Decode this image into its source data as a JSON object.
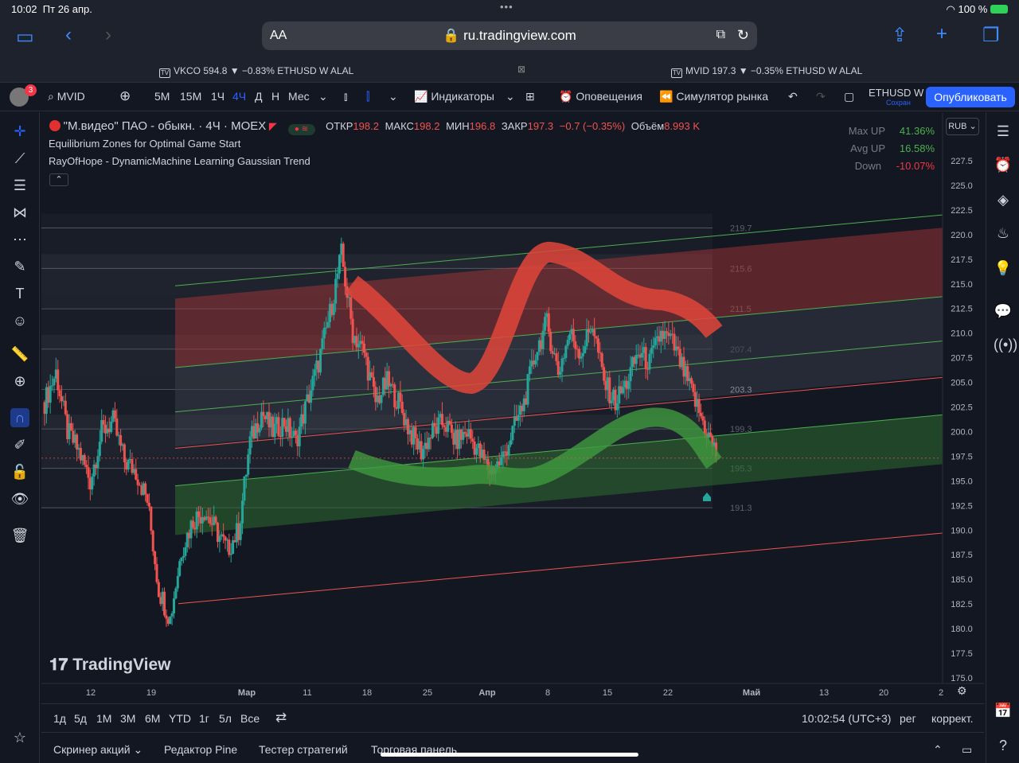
{
  "status_bar": {
    "time": "10:02",
    "date": "Пт 26 апр.",
    "battery": "100 %"
  },
  "safari": {
    "aa": "AA",
    "url": "ru.tradingview.com"
  },
  "tabs": [
    {
      "label": "VKCO 594.8 ▼ −0.83% ETHUSD W ALAL"
    },
    {
      "label": "MVID 197.3 ▼ −0.35% ETHUSD W ALAL"
    }
  ],
  "toolbar": {
    "notif_count": "3",
    "symbol": "MVID",
    "intervals": [
      "5М",
      "15М",
      "1Ч",
      "4Ч",
      "Д",
      "Н",
      "Мес"
    ],
    "active_interval": "4Ч",
    "indicators": "Индикаторы",
    "alerts": "Оповещения",
    "replay": "Симулятор рынка",
    "layout_name": "ETHUSD W",
    "layout_sub": "Сохран",
    "publish": "Опубликовать"
  },
  "legend": {
    "title": "\"М.видео\" ПАО - обыкн. · 4Ч · MOEX",
    "o_label": "ОТКР",
    "o": "198.2",
    "h_label": "МАКС",
    "h": "198.2",
    "l_label": "МИН",
    "l": "196.8",
    "c_label": "ЗАКР",
    "c": "197.3",
    "change": "−0.7 (−0.35%)",
    "vol_label": "Объём",
    "vol": "8.993 K",
    "ind1": "Equilibrium Zones for Optimal Game Start",
    "ind2": "RayOfHope - DynamicMachine Learning Gaussian Trend"
  },
  "stats": {
    "max_up_label": "Max UP",
    "max_up": "41.36%",
    "avg_up_label": "Avg UP",
    "avg_up": "16.58%",
    "down_label": "Down",
    "down": "-10.07%"
  },
  "currency": "RUB",
  "watermark": "TradingView",
  "colors": {
    "up": "#26a69a",
    "down": "#ef5350",
    "accent": "#2962ff",
    "bg": "#131722"
  },
  "chart_data": {
    "type": "candlestick",
    "price_axis": [
      "227.5",
      "225.0",
      "222.5",
      "220.0",
      "217.5",
      "215.0",
      "212.5",
      "210.0",
      "207.5",
      "205.0",
      "202.5",
      "200.0",
      "197.5",
      "195.0",
      "192.5",
      "190.0",
      "187.5",
      "185.0",
      "182.5",
      "180.0",
      "177.5",
      "175.0"
    ],
    "time_axis": [
      "12",
      "19",
      "Мар",
      "11",
      "18",
      "25",
      "Апр",
      "8",
      "15",
      "22",
      "Май",
      "13",
      "20",
      "2"
    ],
    "zone_levels": [
      "219.7",
      "215.6",
      "211.5",
      "207.4",
      "203.3",
      "199.3",
      "195.3",
      "191.3"
    ],
    "ylim": [
      175.0,
      227.5
    ],
    "last_price": 197.3,
    "close_path": [
      {
        "t": 0,
        "v": 203
      },
      {
        "t": 1,
        "v": 206
      },
      {
        "t": 2,
        "v": 200
      },
      {
        "t": 3,
        "v": 198
      },
      {
        "t": 4,
        "v": 195
      },
      {
        "t": 5,
        "v": 200
      },
      {
        "t": 6,
        "v": 201
      },
      {
        "t": 7,
        "v": 197
      },
      {
        "t": 8,
        "v": 196
      },
      {
        "t": 9,
        "v": 193
      },
      {
        "t": 10,
        "v": 184
      },
      {
        "t": 11,
        "v": 181
      },
      {
        "t": 12,
        "v": 188
      },
      {
        "t": 13,
        "v": 191
      },
      {
        "t": 14,
        "v": 192
      },
      {
        "t": 15,
        "v": 190
      },
      {
        "t": 16,
        "v": 188
      },
      {
        "t": 17,
        "v": 190
      },
      {
        "t": 18,
        "v": 199
      },
      {
        "t": 19,
        "v": 202
      },
      {
        "t": 20,
        "v": 200
      },
      {
        "t": 21,
        "v": 201
      },
      {
        "t": 22,
        "v": 199
      },
      {
        "t": 23,
        "v": 203
      },
      {
        "t": 24,
        "v": 207
      },
      {
        "t": 25,
        "v": 212
      },
      {
        "t": 26,
        "v": 218
      },
      {
        "t": 27,
        "v": 210
      },
      {
        "t": 28,
        "v": 208
      },
      {
        "t": 29,
        "v": 203
      },
      {
        "t": 30,
        "v": 205
      },
      {
        "t": 31,
        "v": 203
      },
      {
        "t": 32,
        "v": 200
      },
      {
        "t": 33,
        "v": 198
      },
      {
        "t": 34,
        "v": 200
      },
      {
        "t": 35,
        "v": 201
      },
      {
        "t": 36,
        "v": 199
      },
      {
        "t": 37,
        "v": 200
      },
      {
        "t": 38,
        "v": 198
      },
      {
        "t": 39,
        "v": 196
      },
      {
        "t": 40,
        "v": 197
      },
      {
        "t": 41,
        "v": 200
      },
      {
        "t": 42,
        "v": 203
      },
      {
        "t": 43,
        "v": 208
      },
      {
        "t": 44,
        "v": 211
      },
      {
        "t": 45,
        "v": 206
      },
      {
        "t": 46,
        "v": 210
      },
      {
        "t": 47,
        "v": 208
      },
      {
        "t": 48,
        "v": 211
      },
      {
        "t": 49,
        "v": 205
      },
      {
        "t": 50,
        "v": 203
      },
      {
        "t": 51,
        "v": 205
      },
      {
        "t": 52,
        "v": 208
      },
      {
        "t": 53,
        "v": 207
      },
      {
        "t": 54,
        "v": 210
      },
      {
        "t": 55,
        "v": 209
      },
      {
        "t": 56,
        "v": 206
      },
      {
        "t": 57,
        "v": 203
      },
      {
        "t": 58,
        "v": 200
      },
      {
        "t": 59,
        "v": 197.3
      }
    ]
  },
  "bottom_bar": {
    "ranges": [
      "1д",
      "5д",
      "1М",
      "3М",
      "6М",
      "YTD",
      "1г",
      "5л",
      "Все"
    ],
    "clock": "10:02:54 (UTC+3)",
    "session": "рег",
    "adj": "коррект."
  },
  "panels": [
    "Скринер акций",
    "Редактор Pine",
    "Тестер стратегий",
    "Торговая панель"
  ]
}
